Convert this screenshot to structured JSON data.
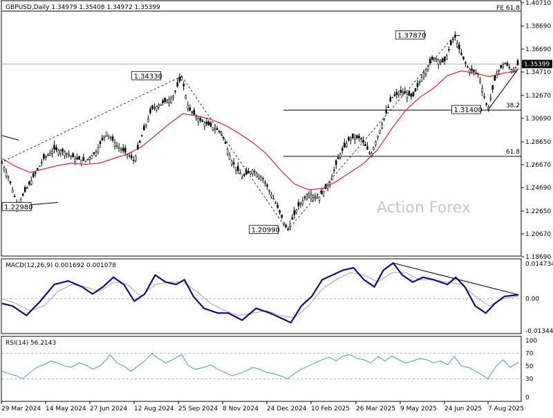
{
  "chart_data": {
    "type": "candlestick",
    "symbol_header": "GBPUSD,Daily  1.34979 1.35408 1.34972 1.35399",
    "current_price": "1.35399",
    "fib_extension_label": "FE 61.8",
    "watermark": "Action Forex",
    "price_axis": {
      "ticks": [
        "1.40710",
        "1.38690",
        "1.36690",
        "1.34710",
        "1.32670",
        "1.30690",
        "1.28650",
        "1.26670",
        "1.24690",
        "1.22650",
        "1.20670",
        "1.18690"
      ],
      "range": [
        1.1869,
        1.4071
      ]
    },
    "date_axis": [
      "29 Mar 2024",
      "14 May 2024",
      "27 Jun 2024",
      "12 Aug 2024",
      "25 Sep 2024",
      "8 Nov 2024",
      "24 Dec 2024",
      "10 Feb 2025",
      "26 Mar 2025",
      "9 May 2025",
      "24 Jun 2025",
      "7 Aug 2025"
    ],
    "price_labels": [
      "1.37870",
      "1.34330",
      "1.31400",
      "1.20990",
      "1.22980"
    ],
    "fib_levels": [
      {
        "label": "38.2",
        "price": 1.314
      },
      {
        "label": "61.8",
        "price": 1.274
      }
    ],
    "price_series": [
      [
        0,
        1.268
      ],
      [
        10,
        1.255
      ],
      [
        22,
        1.231
      ],
      [
        30,
        1.24
      ],
      [
        45,
        1.256
      ],
      [
        60,
        1.272
      ],
      [
        75,
        1.28
      ],
      [
        90,
        1.278
      ],
      [
        105,
        1.272
      ],
      [
        120,
        1.27
      ],
      [
        135,
        1.278
      ],
      [
        150,
        1.295
      ],
      [
        165,
        1.283
      ],
      [
        180,
        1.276
      ],
      [
        190,
        1.27
      ],
      [
        200,
        1.29
      ],
      [
        215,
        1.315
      ],
      [
        230,
        1.32
      ],
      [
        245,
        1.325
      ],
      [
        258,
        1.3433
      ],
      [
        268,
        1.315
      ],
      [
        285,
        1.305
      ],
      [
        300,
        1.3
      ],
      [
        315,
        1.295
      ],
      [
        330,
        1.27
      ],
      [
        345,
        1.256
      ],
      [
        360,
        1.262
      ],
      [
        375,
        1.255
      ],
      [
        392,
        1.235
      ],
      [
        410,
        1.2099
      ],
      [
        425,
        1.23
      ],
      [
        440,
        1.242
      ],
      [
        455,
        1.238
      ],
      [
        470,
        1.25
      ],
      [
        485,
        1.275
      ],
      [
        500,
        1.29
      ],
      [
        515,
        1.29
      ],
      [
        530,
        1.275
      ],
      [
        545,
        1.3
      ],
      [
        560,
        1.325
      ],
      [
        575,
        1.33
      ],
      [
        590,
        1.325
      ],
      [
        605,
        1.345
      ],
      [
        620,
        1.36
      ],
      [
        635,
        1.355
      ],
      [
        650,
        1.3787
      ],
      [
        660,
        1.362
      ],
      [
        670,
        1.35
      ],
      [
        685,
        1.345
      ],
      [
        698,
        1.314
      ],
      [
        710,
        1.345
      ],
      [
        722,
        1.355
      ],
      [
        734,
        1.348
      ],
      [
        742,
        1.354
      ]
    ],
    "ma_series": [
      [
        0,
        1.272
      ],
      [
        20,
        1.265
      ],
      [
        40,
        1.26
      ],
      [
        60,
        1.263
      ],
      [
        80,
        1.266
      ],
      [
        100,
        1.268
      ],
      [
        120,
        1.267
      ],
      [
        140,
        1.268
      ],
      [
        160,
        1.272
      ],
      [
        180,
        1.276
      ],
      [
        200,
        1.282
      ],
      [
        220,
        1.292
      ],
      [
        240,
        1.302
      ],
      [
        260,
        1.311
      ],
      [
        280,
        1.309
      ],
      [
        300,
        1.306
      ],
      [
        320,
        1.301
      ],
      [
        340,
        1.294
      ],
      [
        360,
        1.286
      ],
      [
        380,
        1.276
      ],
      [
        400,
        1.262
      ],
      [
        420,
        1.25
      ],
      [
        440,
        1.245
      ],
      [
        460,
        1.246
      ],
      [
        480,
        1.252
      ],
      [
        500,
        1.26
      ],
      [
        520,
        1.268
      ],
      [
        540,
        1.28
      ],
      [
        560,
        1.298
      ],
      [
        580,
        1.314
      ],
      [
        600,
        1.325
      ],
      [
        620,
        1.333
      ],
      [
        640,
        1.344
      ],
      [
        660,
        1.348
      ],
      [
        680,
        1.346
      ],
      [
        700,
        1.343
      ],
      [
        720,
        1.346
      ],
      [
        740,
        1.348
      ]
    ],
    "macd": {
      "label": "MACD(12,26,9) 0.001692 0.001078",
      "ticks": [
        "0.014734",
        "0.00",
        "-0.013442"
      ],
      "range": [
        -0.013442,
        0.014734
      ],
      "main": [
        [
          0,
          -0.002
        ],
        [
          15,
          -0.003
        ],
        [
          35,
          -0.007
        ],
        [
          55,
          -0.001
        ],
        [
          75,
          0.006
        ],
        [
          95,
          0.0075
        ],
        [
          115,
          0.005
        ],
        [
          130,
          0.002
        ],
        [
          145,
          0.005
        ],
        [
          160,
          0.009
        ],
        [
          175,
          0.006
        ],
        [
          190,
          -0.001
        ],
        [
          205,
          0.002
        ],
        [
          220,
          0.01
        ],
        [
          235,
          0.007
        ],
        [
          250,
          0.006
        ],
        [
          262,
          0.008
        ],
        [
          275,
          0.001
        ],
        [
          290,
          -0.004
        ],
        [
          310,
          -0.006
        ],
        [
          325,
          -0.006
        ],
        [
          345,
          -0.009
        ],
        [
          365,
          -0.004
        ],
        [
          385,
          -0.006
        ],
        [
          400,
          -0.008
        ],
        [
          415,
          -0.01
        ],
        [
          430,
          -0.003
        ],
        [
          445,
          0.001
        ],
        [
          460,
          0.008
        ],
        [
          475,
          0.01
        ],
        [
          490,
          0.012
        ],
        [
          505,
          0.013
        ],
        [
          520,
          0.008
        ],
        [
          535,
          0.005
        ],
        [
          548,
          0.012
        ],
        [
          562,
          0.015
        ],
        [
          575,
          0.01
        ],
        [
          590,
          0.007
        ],
        [
          605,
          0.009
        ],
        [
          620,
          0.008
        ],
        [
          640,
          0.006
        ],
        [
          652,
          0.009
        ],
        [
          665,
          0.005
        ],
        [
          680,
          -0.003
        ],
        [
          695,
          -0.006
        ],
        [
          708,
          -0.002
        ],
        [
          722,
          0.001
        ],
        [
          742,
          0.0017
        ]
      ],
      "signal": [
        [
          0,
          0.0
        ],
        [
          20,
          -0.002
        ],
        [
          40,
          -0.005
        ],
        [
          60,
          -0.003
        ],
        [
          80,
          0.003
        ],
        [
          100,
          0.006
        ],
        [
          120,
          0.005
        ],
        [
          140,
          0.003
        ],
        [
          160,
          0.007
        ],
        [
          180,
          0.006
        ],
        [
          200,
          0.001
        ],
        [
          220,
          0.006
        ],
        [
          240,
          0.007
        ],
        [
          260,
          0.007
        ],
        [
          280,
          0.003
        ],
        [
          300,
          -0.002
        ],
        [
          320,
          -0.005
        ],
        [
          340,
          -0.007
        ],
        [
          360,
          -0.006
        ],
        [
          380,
          -0.005
        ],
        [
          400,
          -0.007
        ],
        [
          420,
          -0.008
        ],
        [
          440,
          -0.003
        ],
        [
          460,
          0.004
        ],
        [
          480,
          0.008
        ],
        [
          500,
          0.011
        ],
        [
          520,
          0.01
        ],
        [
          540,
          0.007
        ],
        [
          560,
          0.011
        ],
        [
          580,
          0.011
        ],
        [
          600,
          0.008
        ],
        [
          620,
          0.008
        ],
        [
          640,
          0.007
        ],
        [
          660,
          0.006
        ],
        [
          680,
          0.001
        ],
        [
          700,
          -0.003
        ],
        [
          720,
          0.0
        ],
        [
          742,
          0.0011
        ]
      ],
      "trendline": [
        [
          562,
          0.015
        ],
        [
          742,
          0.0017
        ]
      ]
    },
    "rsi": {
      "label": "RSI(14) 56.2143",
      "ticks": [
        "100",
        "70",
        "50",
        "30",
        "0"
      ],
      "levels": [
        70,
        30
      ],
      "series": [
        [
          0,
          42
        ],
        [
          10,
          38
        ],
        [
          20,
          35
        ],
        [
          30,
          30
        ],
        [
          40,
          40
        ],
        [
          50,
          48
        ],
        [
          60,
          52
        ],
        [
          70,
          58
        ],
        [
          80,
          55
        ],
        [
          90,
          50
        ],
        [
          100,
          48
        ],
        [
          110,
          55
        ],
        [
          120,
          52
        ],
        [
          130,
          45
        ],
        [
          140,
          50
        ],
        [
          150,
          60
        ],
        [
          155,
          68
        ],
        [
          165,
          55
        ],
        [
          175,
          50
        ],
        [
          185,
          42
        ],
        [
          195,
          50
        ],
        [
          205,
          58
        ],
        [
          215,
          70
        ],
        [
          225,
          62
        ],
        [
          235,
          55
        ],
        [
          245,
          60
        ],
        [
          258,
          68
        ],
        [
          268,
          50
        ],
        [
          278,
          45
        ],
        [
          290,
          48
        ],
        [
          300,
          52
        ],
        [
          310,
          45
        ],
        [
          320,
          40
        ],
        [
          330,
          35
        ],
        [
          340,
          38
        ],
        [
          350,
          42
        ],
        [
          360,
          48
        ],
        [
          370,
          45
        ],
        [
          380,
          40
        ],
        [
          390,
          38
        ],
        [
          400,
          35
        ],
        [
          410,
          30
        ],
        [
          420,
          38
        ],
        [
          430,
          45
        ],
        [
          440,
          50
        ],
        [
          450,
          55
        ],
        [
          460,
          60
        ],
        [
          470,
          64
        ],
        [
          480,
          58
        ],
        [
          490,
          66
        ],
        [
          500,
          68
        ],
        [
          510,
          62
        ],
        [
          520,
          60
        ],
        [
          530,
          55
        ],
        [
          540,
          65
        ],
        [
          550,
          58
        ],
        [
          560,
          66
        ],
        [
          570,
          60
        ],
        [
          580,
          55
        ],
        [
          590,
          58
        ],
        [
          600,
          62
        ],
        [
          610,
          60
        ],
        [
          620,
          55
        ],
        [
          630,
          58
        ],
        [
          640,
          52
        ],
        [
          650,
          65
        ],
        [
          660,
          50
        ],
        [
          670,
          48
        ],
        [
          680,
          42
        ],
        [
          690,
          36
        ],
        [
          698,
          30
        ],
        [
          710,
          50
        ],
        [
          720,
          60
        ],
        [
          730,
          48
        ],
        [
          742,
          56
        ]
      ]
    }
  }
}
